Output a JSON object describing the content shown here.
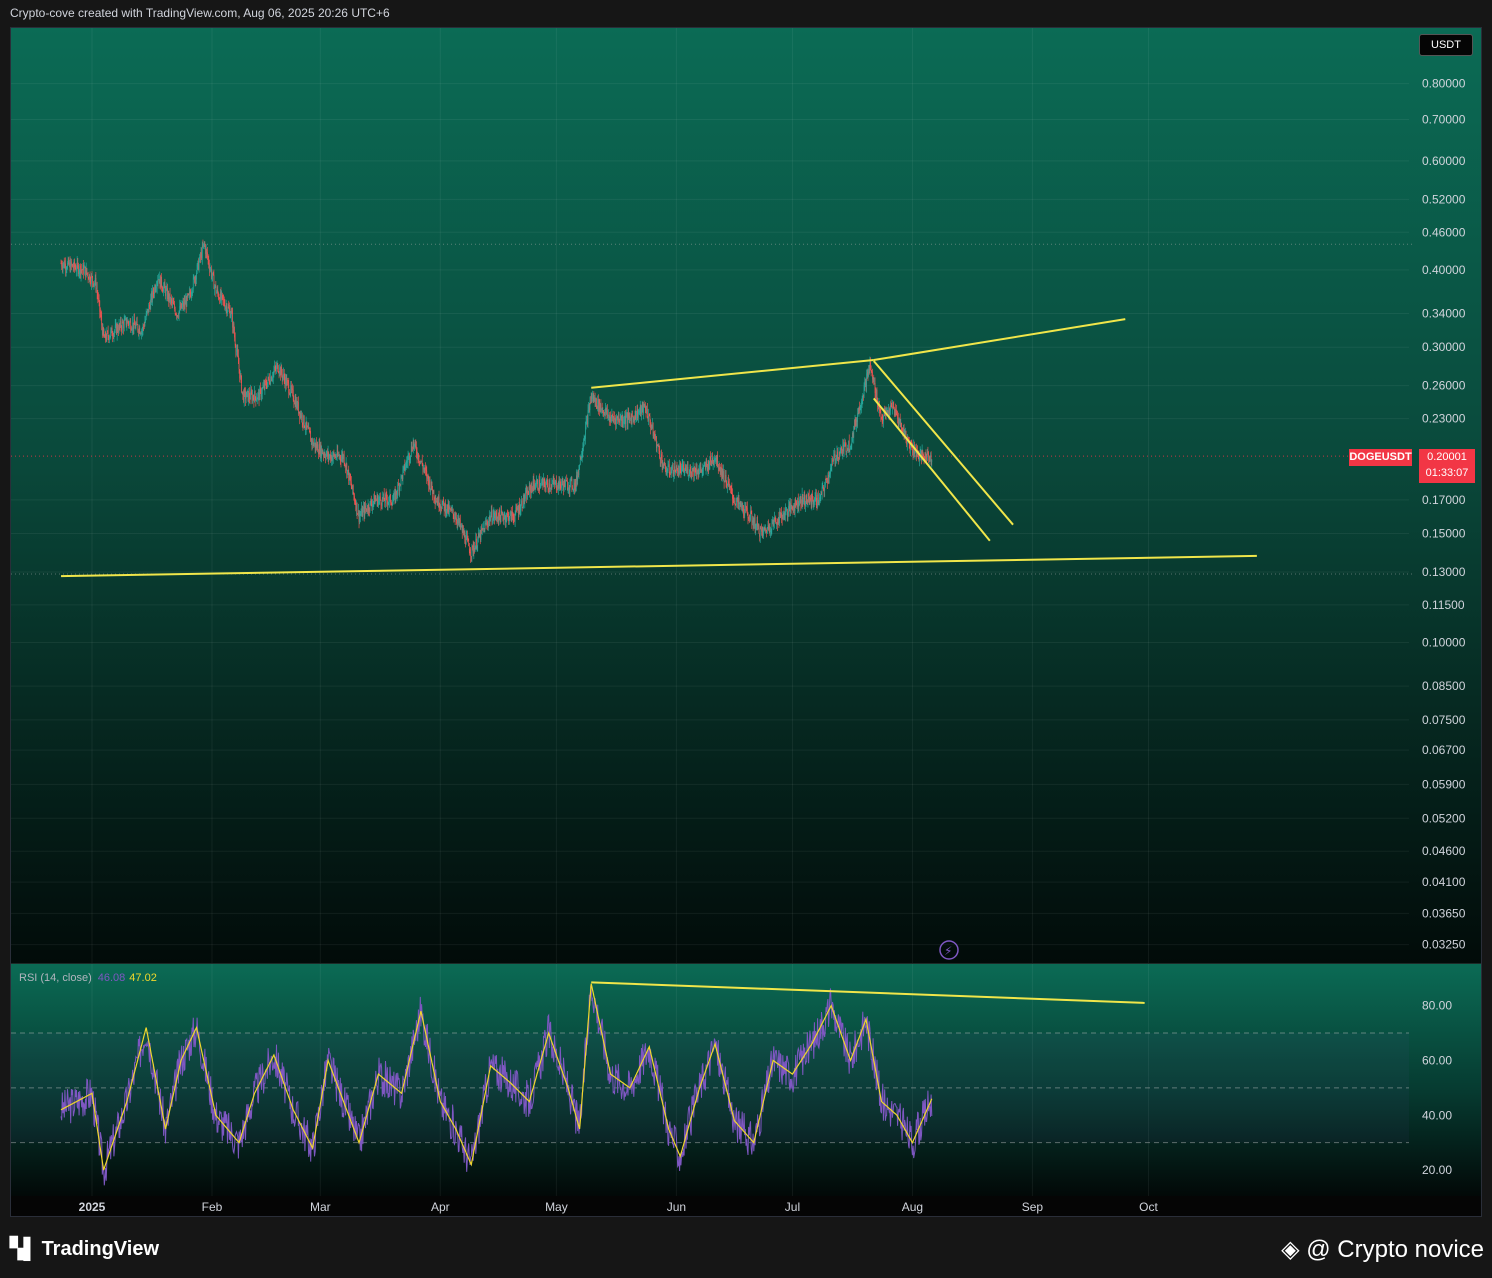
{
  "header": {
    "credit_line": "Crypto-cove created with TradingView.com, Aug 06, 2025 20:26 UTC+6"
  },
  "footer": {
    "brand": "TradingView",
    "watermark": "@ Crypto novice"
  },
  "price_scale": {
    "currency": "USDT"
  },
  "symbol": {
    "ticker": "DOGEUSDT",
    "last_price": "0.20001",
    "countdown": "01:33:07"
  },
  "rsi": {
    "label": "RSI (14, close)",
    "value": "46.08",
    "ma_value": "47.02"
  },
  "colors": {
    "up": "#26a69a",
    "down": "#ef5350",
    "trendline": "#f0e64a",
    "rsi_line": "#7e57c2",
    "rsi_ma": "#f0d72c",
    "price_tag": "#f23645"
  },
  "chart_data": [
    {
      "type": "candlestick",
      "scale": "log",
      "x_ticks": [
        "2025",
        "Feb",
        "Mar",
        "Apr",
        "May",
        "Jun",
        "Jul",
        "Aug",
        "Sep",
        "Oct"
      ],
      "y_ticks": [
        "0.80000",
        "0.70000",
        "0.60000",
        "0.52000",
        "0.46000",
        "0.40000",
        "0.34000",
        "0.30000",
        "0.26000",
        "0.23000",
        "0.20001",
        "0.17000",
        "0.15000",
        "0.13000",
        "0.11500",
        "0.10000",
        "0.08500",
        "0.07500",
        "0.06700",
        "0.05900",
        "0.05200",
        "0.04600",
        "0.04100",
        "0.03650",
        "0.03250"
      ],
      "y_tick_values": [
        0.8,
        0.7,
        0.6,
        0.52,
        0.46,
        0.4,
        0.34,
        0.3,
        0.26,
        0.23,
        0.2,
        0.17,
        0.15,
        0.13,
        0.115,
        0.1,
        0.085,
        0.075,
        0.067,
        0.059,
        0.052,
        0.046,
        0.041,
        0.0365,
        0.0325
      ],
      "ylim": [
        0.0315,
        0.92
      ],
      "close_path": [
        [
          "2024-12-24",
          0.41
        ],
        [
          "2024-12-30",
          0.4
        ],
        [
          "2025-01-02",
          0.38
        ],
        [
          "2025-01-04",
          0.31
        ],
        [
          "2025-01-10",
          0.33
        ],
        [
          "2025-01-14",
          0.32
        ],
        [
          "2025-01-18",
          0.39
        ],
        [
          "2025-01-23",
          0.34
        ],
        [
          "2025-01-26",
          0.36
        ],
        [
          "2025-01-30",
          0.44
        ],
        [
          "2025-02-02",
          0.37
        ],
        [
          "2025-02-06",
          0.34
        ],
        [
          "2025-02-09",
          0.25
        ],
        [
          "2025-02-13",
          0.25
        ],
        [
          "2025-02-18",
          0.28
        ],
        [
          "2025-02-22",
          0.25
        ],
        [
          "2025-02-27",
          0.21
        ],
        [
          "2025-03-03",
          0.2
        ],
        [
          "2025-03-07",
          0.2
        ],
        [
          "2025-03-11",
          0.16
        ],
        [
          "2025-03-15",
          0.17
        ],
        [
          "2025-03-20",
          0.17
        ],
        [
          "2025-03-25",
          0.21
        ],
        [
          "2025-03-31",
          0.17
        ],
        [
          "2025-04-05",
          0.16
        ],
        [
          "2025-04-09",
          0.14
        ],
        [
          "2025-04-14",
          0.16
        ],
        [
          "2025-04-20",
          0.16
        ],
        [
          "2025-04-25",
          0.18
        ],
        [
          "2025-04-30",
          0.18
        ],
        [
          "2025-05-06",
          0.18
        ],
        [
          "2025-05-10",
          0.25
        ],
        [
          "2025-05-15",
          0.23
        ],
        [
          "2025-05-20",
          0.23
        ],
        [
          "2025-05-24",
          0.24
        ],
        [
          "2025-05-29",
          0.19
        ],
        [
          "2025-06-03",
          0.19
        ],
        [
          "2025-06-08",
          0.19
        ],
        [
          "2025-06-11",
          0.2
        ],
        [
          "2025-06-16",
          0.17
        ],
        [
          "2025-06-20",
          0.16
        ],
        [
          "2025-06-23",
          0.15
        ],
        [
          "2025-06-28",
          0.16
        ],
        [
          "2025-07-03",
          0.17
        ],
        [
          "2025-07-08",
          0.17
        ],
        [
          "2025-07-12",
          0.2
        ],
        [
          "2025-07-16",
          0.21
        ],
        [
          "2025-07-19",
          0.25
        ],
        [
          "2025-07-21",
          0.28
        ],
        [
          "2025-07-24",
          0.23
        ],
        [
          "2025-07-27",
          0.24
        ],
        [
          "2025-07-31",
          0.21
        ],
        [
          "2025-08-03",
          0.2
        ],
        [
          "2025-08-06",
          0.2
        ]
      ],
      "trendlines": [
        {
          "from": [
            "2024-12-24",
            0.128
          ],
          "to": [
            "2025-10-29",
            0.138
          ]
        },
        {
          "from": [
            "2025-05-10",
            0.258
          ],
          "to": [
            "2025-07-22",
            0.286
          ]
        },
        {
          "from": [
            "2025-07-22",
            0.286
          ],
          "to": [
            "2025-09-25",
            0.333
          ]
        },
        {
          "from": [
            "2025-07-22",
            0.285
          ],
          "to": [
            "2025-08-27",
            0.155
          ]
        },
        {
          "from": [
            "2025-07-22",
            0.248
          ],
          "to": [
            "2025-08-21",
            0.146
          ]
        }
      ]
    },
    {
      "type": "line",
      "name": "RSI (14, close)",
      "ylim": [
        12,
        93
      ],
      "y_ticks": [
        "80.00",
        "60.00",
        "40.00",
        "20.00"
      ],
      "y_tick_values": [
        80,
        60,
        40,
        20
      ],
      "bands": [
        70,
        50,
        30
      ],
      "rsi_path": [
        [
          "2024-12-24",
          42
        ],
        [
          "2025-01-01",
          48
        ],
        [
          "2025-01-04",
          20
        ],
        [
          "2025-01-10",
          45
        ],
        [
          "2025-01-15",
          72
        ],
        [
          "2025-01-20",
          35
        ],
        [
          "2025-01-24",
          60
        ],
        [
          "2025-01-28",
          72
        ],
        [
          "2025-02-02",
          40
        ],
        [
          "2025-02-08",
          30
        ],
        [
          "2025-02-12",
          48
        ],
        [
          "2025-02-17",
          62
        ],
        [
          "2025-02-22",
          42
        ],
        [
          "2025-02-27",
          28
        ],
        [
          "2025-03-03",
          60
        ],
        [
          "2025-03-07",
          45
        ],
        [
          "2025-03-11",
          30
        ],
        [
          "2025-03-16",
          55
        ],
        [
          "2025-03-22",
          48
        ],
        [
          "2025-03-27",
          78
        ],
        [
          "2025-04-01",
          45
        ],
        [
          "2025-04-05",
          35
        ],
        [
          "2025-04-09",
          22
        ],
        [
          "2025-04-14",
          58
        ],
        [
          "2025-04-19",
          52
        ],
        [
          "2025-04-24",
          45
        ],
        [
          "2025-04-29",
          70
        ],
        [
          "2025-05-04",
          50
        ],
        [
          "2025-05-07",
          35
        ],
        [
          "2025-05-10",
          88
        ],
        [
          "2025-05-15",
          55
        ],
        [
          "2025-05-20",
          50
        ],
        [
          "2025-05-25",
          65
        ],
        [
          "2025-05-30",
          35
        ],
        [
          "2025-06-02",
          25
        ],
        [
          "2025-06-07",
          50
        ],
        [
          "2025-06-11",
          66
        ],
        [
          "2025-06-16",
          38
        ],
        [
          "2025-06-21",
          30
        ],
        [
          "2025-06-26",
          60
        ],
        [
          "2025-07-01",
          55
        ],
        [
          "2025-07-06",
          66
        ],
        [
          "2025-07-11",
          80
        ],
        [
          "2025-07-16",
          60
        ],
        [
          "2025-07-20",
          75
        ],
        [
          "2025-07-24",
          45
        ],
        [
          "2025-07-28",
          40
        ],
        [
          "2025-08-01",
          30
        ],
        [
          "2025-08-06",
          46
        ]
      ],
      "rsi_trendline": {
        "from": [
          "2025-05-10",
          88.5
        ],
        "to": [
          "2025-09-30",
          81
        ]
      }
    }
  ]
}
